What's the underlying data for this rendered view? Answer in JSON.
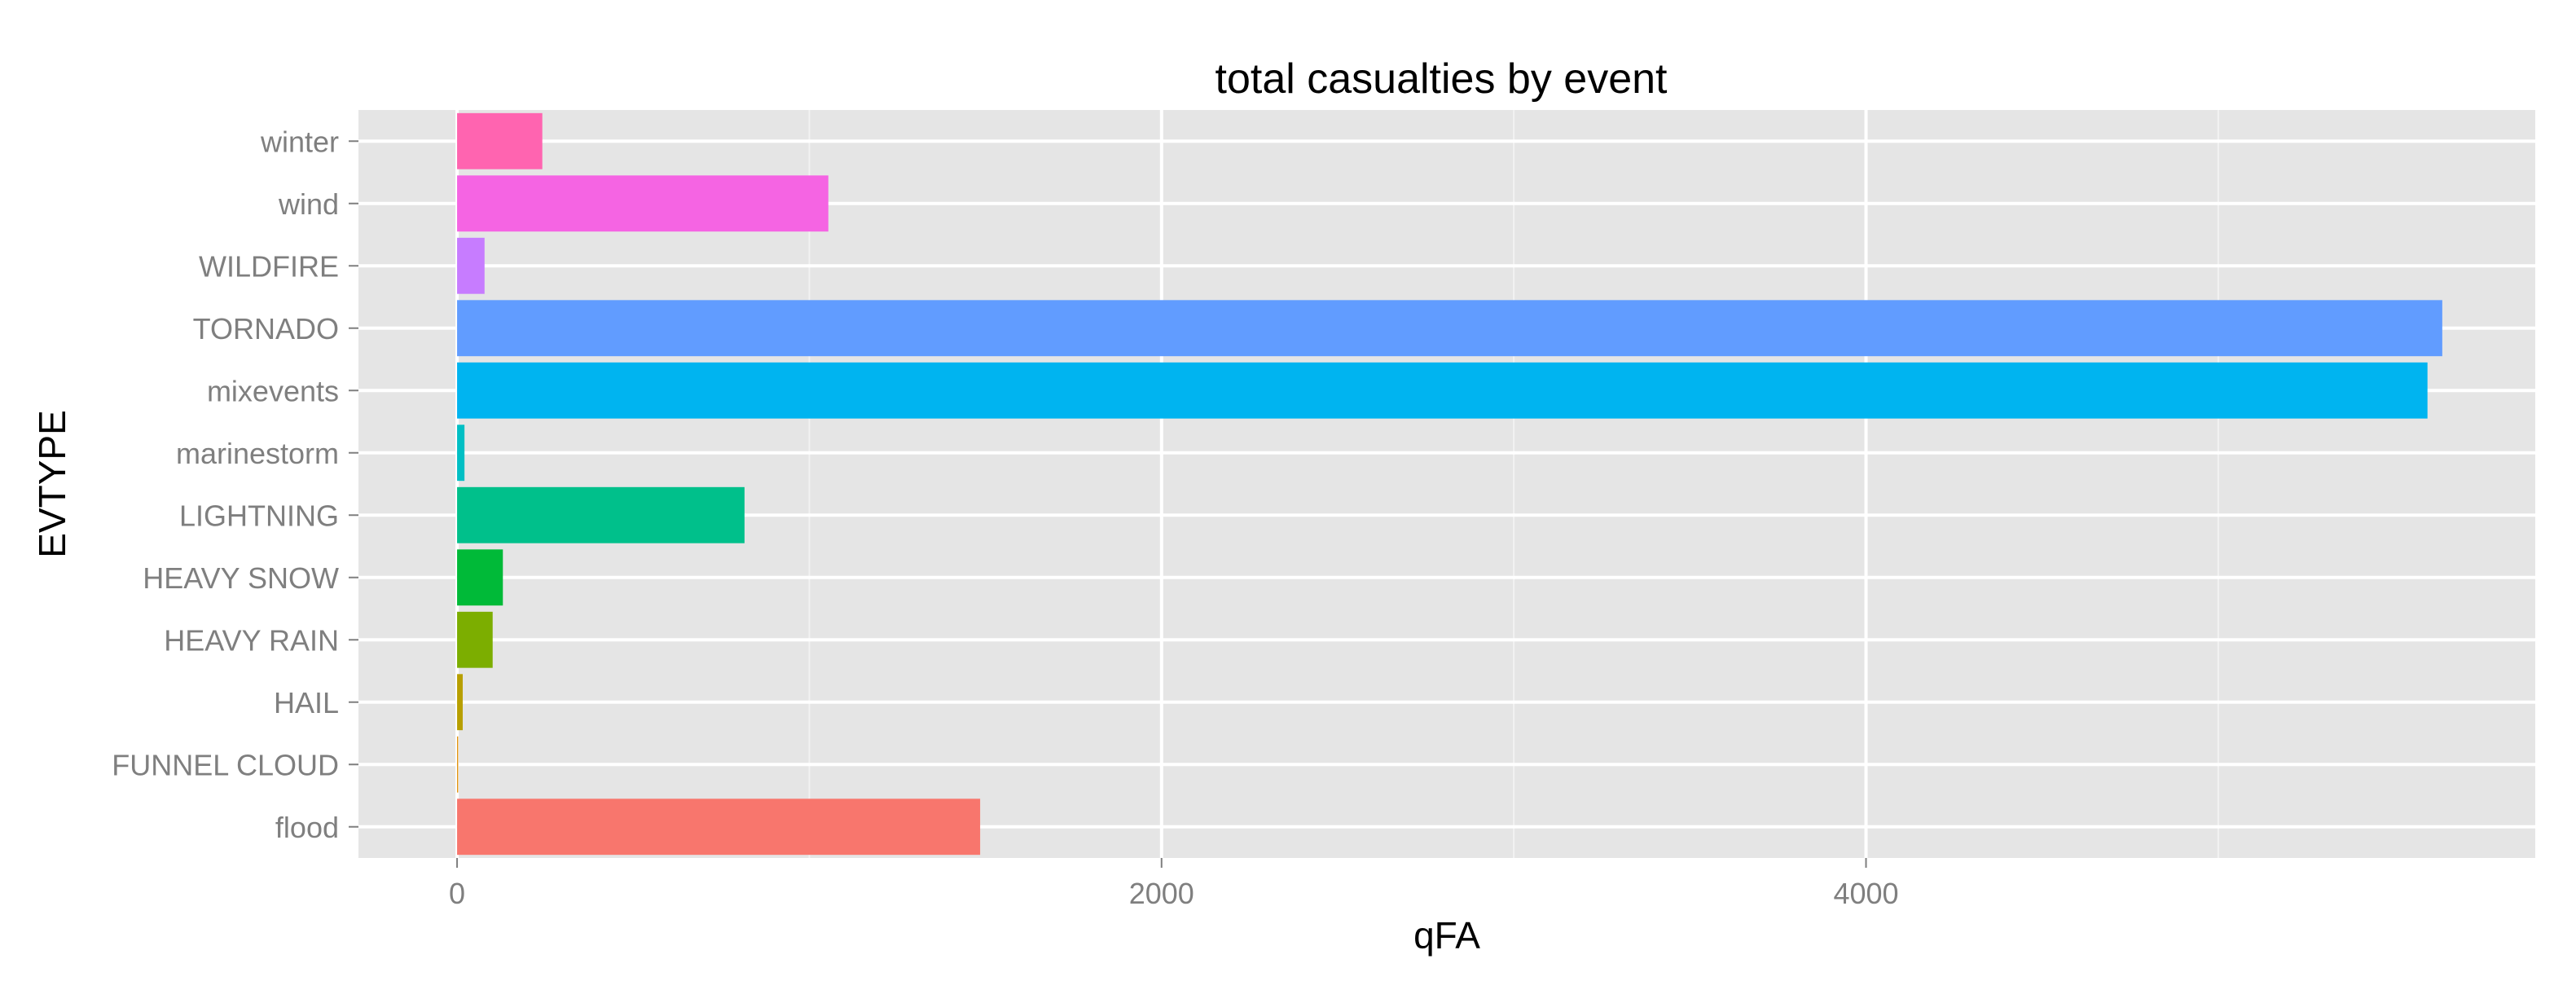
{
  "chart_data": {
    "type": "bar",
    "orientation": "horizontal",
    "title": "total casualties by event",
    "xlabel": "qFA",
    "ylabel": "EVTYPE",
    "xlim": [
      -280,
      5900
    ],
    "xticks": [
      0,
      2000,
      4000
    ],
    "grid": true,
    "legend": "none",
    "categories": [
      "flood",
      "FUNNEL CLOUD",
      "HAIL",
      "HEAVY RAIN",
      "HEAVY SNOW",
      "LIGHTNING",
      "marinestorm",
      "mixevents",
      "TORNADO",
      "WILDFIRE",
      "wind",
      "winter"
    ],
    "values": [
      1485,
      3,
      16,
      101,
      130,
      816,
      21,
      5594,
      5636,
      78,
      1054,
      242
    ],
    "colors": [
      "#F8766D",
      "#DE8C00",
      "#B79F00",
      "#7CAE00",
      "#00BA38",
      "#00C08B",
      "#00BFC4",
      "#00B4F0",
      "#619CFF",
      "#C77CFF",
      "#F564E3",
      "#FF64B0"
    ]
  }
}
